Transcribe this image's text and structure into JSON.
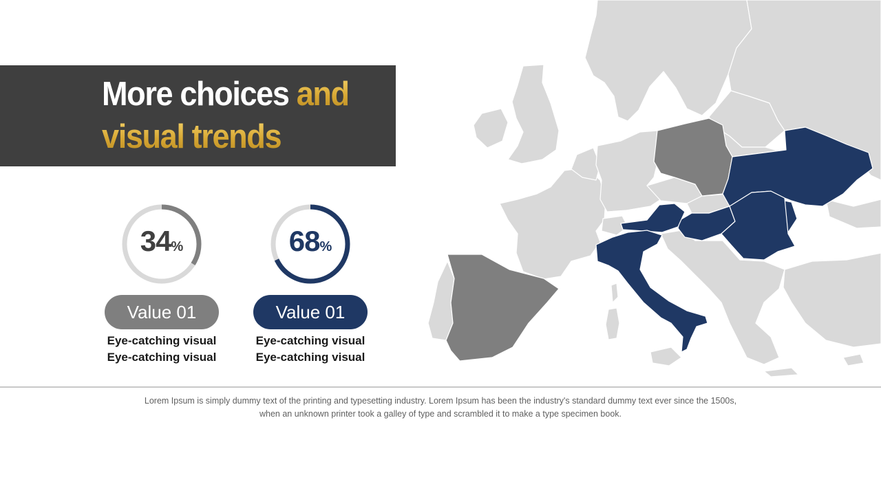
{
  "title": {
    "line1_white": "More choices ",
    "line1_gold": "and",
    "line2_gold": "visual trends"
  },
  "stats": [
    {
      "percent": 34,
      "percent_text": "34",
      "percent_symbol": "%",
      "label": "Value 01",
      "line1": "Eye-catching visual",
      "line2": "Eye-catching visual",
      "color": "#7f7f7f"
    },
    {
      "percent": 68,
      "percent_text": "68",
      "percent_symbol": "%",
      "label": "Value 01",
      "line1": "Eye-catching visual",
      "line2": "Eye-catching visual",
      "color": "#1f3864"
    }
  ],
  "map": {
    "highlight_navy": [
      "Ukraine",
      "Romania",
      "Hungary",
      "Austria",
      "Italy",
      "Moldova"
    ],
    "highlight_gray": [
      "Poland",
      "Spain"
    ],
    "colors": {
      "navy": "#1f3864",
      "dark_gray": "#7f7f7f",
      "base": "#d9d9d9",
      "border": "#ffffff"
    }
  },
  "footer": {
    "line1": "Lorem Ipsum is simply dummy text of the printing and typesetting industry. Lorem Ipsum has been the industry's standard dummy text ever since the 1500s,",
    "line2": "when an unknown printer took a galley of type and scrambled it to make a type specimen book."
  }
}
